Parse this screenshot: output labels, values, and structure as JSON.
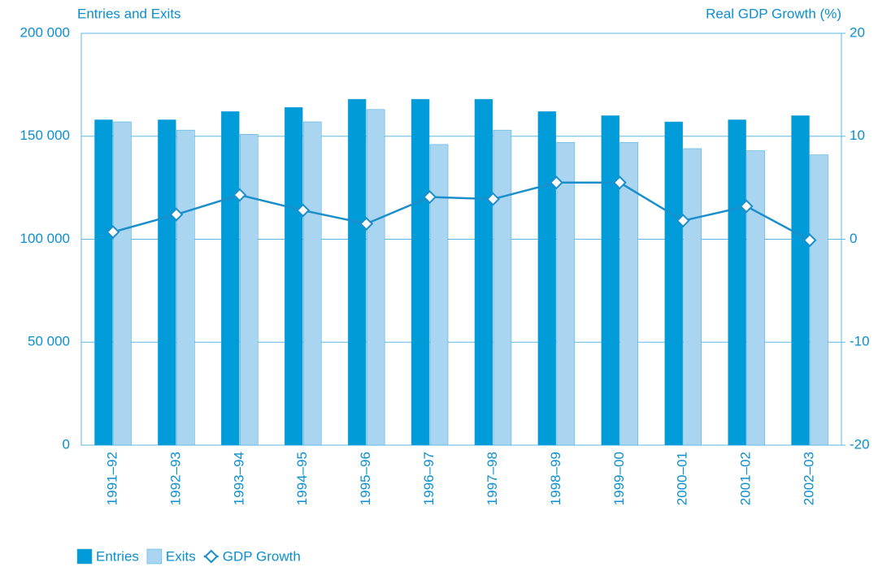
{
  "chart_data": {
    "type": "bar",
    "y_label": "Entries and Exits",
    "y2_label": "Real GDP Growth (%)",
    "categories": [
      "1991–92",
      "1992–93",
      "1993–94",
      "1994–95",
      "1995–96",
      "1996–97",
      "1997–98",
      "1998–99",
      "1999–00",
      "2000–01",
      "2001–02",
      "2002–03"
    ],
    "series": [
      {
        "name": "Entries",
        "type": "bar",
        "color": "#009bd9",
        "values": [
          158000,
          158000,
          162000,
          164000,
          168000,
          168000,
          168000,
          162000,
          160000,
          157000,
          158000,
          160000
        ]
      },
      {
        "name": "Exits",
        "type": "bar",
        "color": "#a9d5f0",
        "values": [
          157000,
          153000,
          151000,
          157000,
          163000,
          146000,
          153000,
          147000,
          147000,
          144000,
          143000,
          141000
        ]
      },
      {
        "name": "GDP Growth",
        "type": "line",
        "axis": "y2",
        "color": "#1b8fcb",
        "values": [
          0.7,
          2.4,
          4.3,
          2.8,
          1.5,
          4.1,
          3.9,
          5.5,
          5.5,
          1.8,
          3.2,
          -0.1
        ]
      }
    ],
    "ylim": [
      0,
      200000
    ],
    "yticks": [
      {
        "value": 0,
        "label": "0"
      },
      {
        "value": 50000,
        "label": "50 000"
      },
      {
        "value": 100000,
        "label": "100 000"
      },
      {
        "value": 150000,
        "label": "150 000"
      },
      {
        "value": 200000,
        "label": "200 000"
      }
    ],
    "y2lim": [
      -20,
      20
    ],
    "y2ticks": [
      -20,
      -10,
      0,
      10,
      20
    ],
    "grid": true
  }
}
